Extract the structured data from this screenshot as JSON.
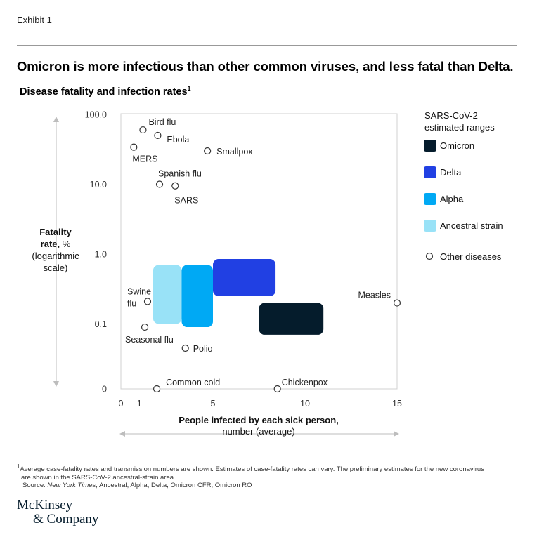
{
  "exhibit": "Exhibit 1",
  "title": "Omicron is more infectious than other common viruses, and less fatal than Delta.",
  "subtitle": "Disease fatality and infection rates",
  "subtitle_sup": "1",
  "y_axis_title": {
    "line1_bold": "Fatality",
    "line2_bold": "rate,",
    "line2_rest": " %",
    "line3": "(logarithmic",
    "line4": "scale)"
  },
  "x_axis_title": {
    "line1": "People infected by each sick person,",
    "line2": "number (average)"
  },
  "legend": {
    "title_line1": "SARS-CoV-2",
    "title_line2": "estimated ranges",
    "items": [
      {
        "label": "Omicron",
        "color": "#051c2c"
      },
      {
        "label": "Delta",
        "color": "#2140e3"
      },
      {
        "label": "Alpha",
        "color": "#00a9f4"
      },
      {
        "label": "Ancestral strain",
        "color": "#99e2f7"
      }
    ],
    "other_label": "Other diseases"
  },
  "chart_data": {
    "type": "scatter",
    "x_scale": "linear",
    "y_scale": "log",
    "xlim": [
      0,
      15
    ],
    "ylim": [
      0,
      100
    ],
    "x_ticks": [
      0,
      1,
      5,
      10,
      15
    ],
    "y_ticks": [
      "100.0",
      "10.0",
      "1.0",
      "0.1",
      "0"
    ],
    "grid": false,
    "legend_position": "right",
    "points": [
      {
        "name": "Bird flu",
        "x": 1.2,
        "y": 60
      },
      {
        "name": "Ebola",
        "x": 2.0,
        "y": 50
      },
      {
        "name": "MERS",
        "x": 0.7,
        "y": 34
      },
      {
        "name": "Smallpox",
        "x": 4.7,
        "y": 30
      },
      {
        "name": "Spanish flu",
        "x": 2.1,
        "y": 10
      },
      {
        "name": "SARS",
        "x": 2.95,
        "y": 9.5
      },
      {
        "name": "Swine",
        "name2": "flu",
        "x": 1.45,
        "y": 0.21
      },
      {
        "name": "Seasonal flu",
        "x": 1.3,
        "y": 0.09
      },
      {
        "name": "Polio",
        "x": 3.5,
        "y": 0.045
      },
      {
        "name": "Measles",
        "x": 15,
        "y": 0.2
      },
      {
        "name": "Common cold",
        "x": 1.95,
        "y": 0
      },
      {
        "name": "Chickenpox",
        "x": 8.5,
        "y": 0
      }
    ],
    "ranges": [
      {
        "name": "Ancestral strain",
        "x": [
          1.75,
          3.3
        ],
        "y": [
          0.1,
          0.7
        ],
        "color": "#99e2f7"
      },
      {
        "name": "Alpha",
        "x": [
          3.3,
          5.0
        ],
        "y": [
          0.09,
          0.7
        ],
        "color": "#00a9f4"
      },
      {
        "name": "Delta",
        "x": [
          5.0,
          8.4
        ],
        "y": [
          0.25,
          0.85
        ],
        "color": "#2140e3"
      },
      {
        "name": "Omicron",
        "x": [
          7.5,
          11.0
        ],
        "y": [
          0.07,
          0.2
        ],
        "color": "#051c2c"
      }
    ]
  },
  "footnote": {
    "line1": "Average case-fatality rates and transmission numbers are shown. Estimates of case-fatality rates can vary. The preliminary estimates for the new coronavirus",
    "line2": "are shown in the SARS-CoV-2 ancestral-strain area.",
    "sup": "1"
  },
  "source": {
    "prefix": "Source: ",
    "italic": "New York Times",
    "rest": ", Ancestral, Alpha, Delta, Omicron CFR, Omicron RO"
  },
  "logo": {
    "line1": "McKinsey",
    "line2": "& Company"
  }
}
